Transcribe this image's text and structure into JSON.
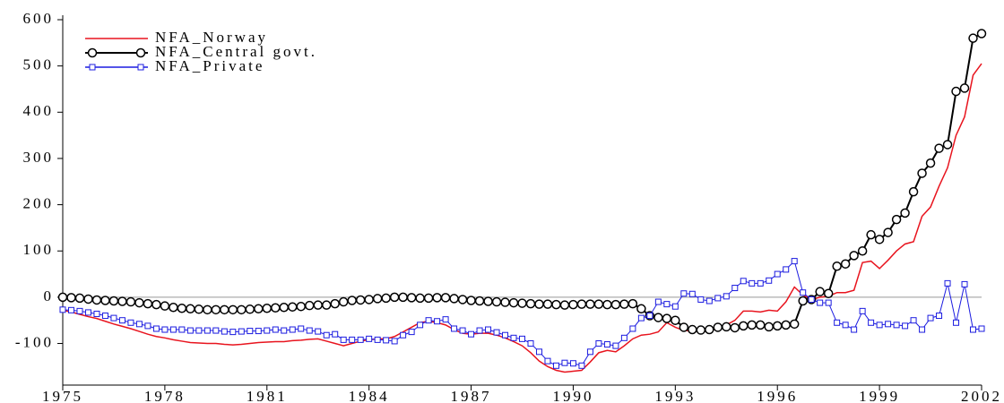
{
  "chart_data": {
    "type": "line",
    "x": [
      1975,
      1975.25,
      1975.5,
      1975.75,
      1976,
      1976.25,
      1976.5,
      1976.75,
      1977,
      1977.25,
      1977.5,
      1977.75,
      1978,
      1978.25,
      1978.5,
      1978.75,
      1979,
      1979.25,
      1979.5,
      1979.75,
      1980,
      1980.25,
      1980.5,
      1980.75,
      1981,
      1981.25,
      1981.5,
      1981.75,
      1982,
      1982.25,
      1982.5,
      1982.75,
      1983,
      1983.25,
      1983.5,
      1983.75,
      1984,
      1984.25,
      1984.5,
      1984.75,
      1985,
      1985.25,
      1985.5,
      1985.75,
      1986,
      1986.25,
      1986.5,
      1986.75,
      1987,
      1987.25,
      1987.5,
      1987.75,
      1988,
      1988.25,
      1988.5,
      1988.75,
      1989,
      1989.25,
      1989.5,
      1989.75,
      1990,
      1990.25,
      1990.5,
      1990.75,
      1991,
      1991.25,
      1991.5,
      1991.75,
      1992,
      1992.25,
      1992.5,
      1992.75,
      1993,
      1993.25,
      1993.5,
      1993.75,
      1994,
      1994.25,
      1994.5,
      1994.75,
      1995,
      1995.25,
      1995.5,
      1995.75,
      1996,
      1996.25,
      1996.5,
      1996.75,
      1997,
      1997.25,
      1997.5,
      1997.75,
      1998,
      1998.25,
      1998.5,
      1998.75,
      1999,
      1999.25,
      1999.5,
      1999.75,
      2000,
      2000.25,
      2000.5,
      2000.75,
      2001,
      2001.25,
      2001.5,
      2001.75,
      2002
    ],
    "series": [
      {
        "name": "NFA_Norway",
        "color": "#e8141e",
        "marker": "none",
        "values": [
          -28,
          -32,
          -37,
          -42,
          -46,
          -52,
          -58,
          -63,
          -68,
          -74,
          -80,
          -85,
          -88,
          -92,
          -95,
          -98,
          -99,
          -100,
          -100,
          -102,
          -103,
          -102,
          -100,
          -98,
          -97,
          -96,
          -96,
          -94,
          -93,
          -91,
          -90,
          -95,
          -100,
          -105,
          -100,
          -95,
          -92,
          -90,
          -90,
          -85,
          -75,
          -65,
          -55,
          -52,
          -55,
          -60,
          -70,
          -78,
          -80,
          -78,
          -78,
          -82,
          -88,
          -96,
          -105,
          -120,
          -138,
          -150,
          -158,
          -162,
          -160,
          -158,
          -140,
          -120,
          -115,
          -118,
          -105,
          -90,
          -82,
          -80,
          -75,
          -55,
          -65,
          -72,
          -73,
          -75,
          -72,
          -68,
          -60,
          -50,
          -30,
          -30,
          -32,
          -28,
          -30,
          -10,
          22,
          5,
          -5,
          0,
          2,
          10,
          10,
          15,
          75,
          78,
          62,
          80,
          100,
          115,
          120,
          175,
          195,
          240,
          280,
          350,
          390,
          480,
          505
        ]
      },
      {
        "name": "NFA_Central govt.",
        "color": "#000000",
        "marker": "circle",
        "values": [
          0,
          -1,
          -2,
          -4,
          -6,
          -7,
          -8,
          -9,
          -10,
          -12,
          -14,
          -16,
          -19,
          -22,
          -24,
          -25,
          -26,
          -27,
          -27,
          -27,
          -27,
          -27,
          -26,
          -25,
          -24,
          -23,
          -22,
          -21,
          -20,
          -18,
          -17,
          -17,
          -14,
          -10,
          -7,
          -6,
          -5,
          -3,
          -2,
          0,
          0,
          -1,
          -2,
          -2,
          -1,
          -1,
          -3,
          -5,
          -7,
          -8,
          -9,
          -10,
          -11,
          -12,
          -13,
          -14,
          -15,
          -15,
          -16,
          -17,
          -16,
          -15,
          -15,
          -15,
          -16,
          -16,
          -15,
          -14,
          -25,
          -40,
          -44,
          -46,
          -50,
          -65,
          -70,
          -71,
          -70,
          -65,
          -64,
          -66,
          -62,
          -60,
          -60,
          -64,
          -62,
          -60,
          -58,
          -8,
          -5,
          12,
          8,
          67,
          72,
          90,
          100,
          135,
          125,
          140,
          168,
          182,
          228,
          268,
          290,
          322,
          330,
          445,
          452,
          560,
          570
        ]
      },
      {
        "name": "NFA_Private",
        "color": "#1c1ce0",
        "marker": "square",
        "values": [
          -27,
          -28,
          -30,
          -33,
          -36,
          -40,
          -45,
          -50,
          -55,
          -58,
          -62,
          -68,
          -70,
          -70,
          -70,
          -72,
          -72,
          -72,
          -72,
          -74,
          -75,
          -74,
          -73,
          -73,
          -72,
          -70,
          -72,
          -70,
          -68,
          -72,
          -74,
          -82,
          -80,
          -92,
          -92,
          -92,
          -90,
          -92,
          -93,
          -95,
          -82,
          -75,
          -60,
          -50,
          -52,
          -48,
          -68,
          -72,
          -80,
          -72,
          -70,
          -76,
          -82,
          -88,
          -90,
          -100,
          -118,
          -138,
          -148,
          -142,
          -143,
          -148,
          -118,
          -100,
          -102,
          -105,
          -88,
          -68,
          -45,
          -40,
          -10,
          -15,
          -20,
          8,
          7,
          -5,
          -8,
          -2,
          2,
          20,
          35,
          30,
          30,
          36,
          50,
          60,
          78,
          10,
          -5,
          -12,
          -12,
          -55,
          -60,
          -70,
          -30,
          -55,
          -60,
          -58,
          -60,
          -62,
          -50,
          -70,
          -45,
          -40,
          30,
          -55,
          28,
          -70,
          -68
        ]
      }
    ],
    "xlim": [
      1975,
      2002
    ],
    "xticks": [
      1975,
      1978,
      1981,
      1984,
      1987,
      1990,
      1993,
      1996,
      1999,
      2002
    ],
    "ylim": [
      -190,
      600
    ],
    "yticks": [
      -100,
      0,
      100,
      200,
      300,
      400,
      500,
      600
    ],
    "zero_line": true,
    "legend": "upper-left"
  }
}
